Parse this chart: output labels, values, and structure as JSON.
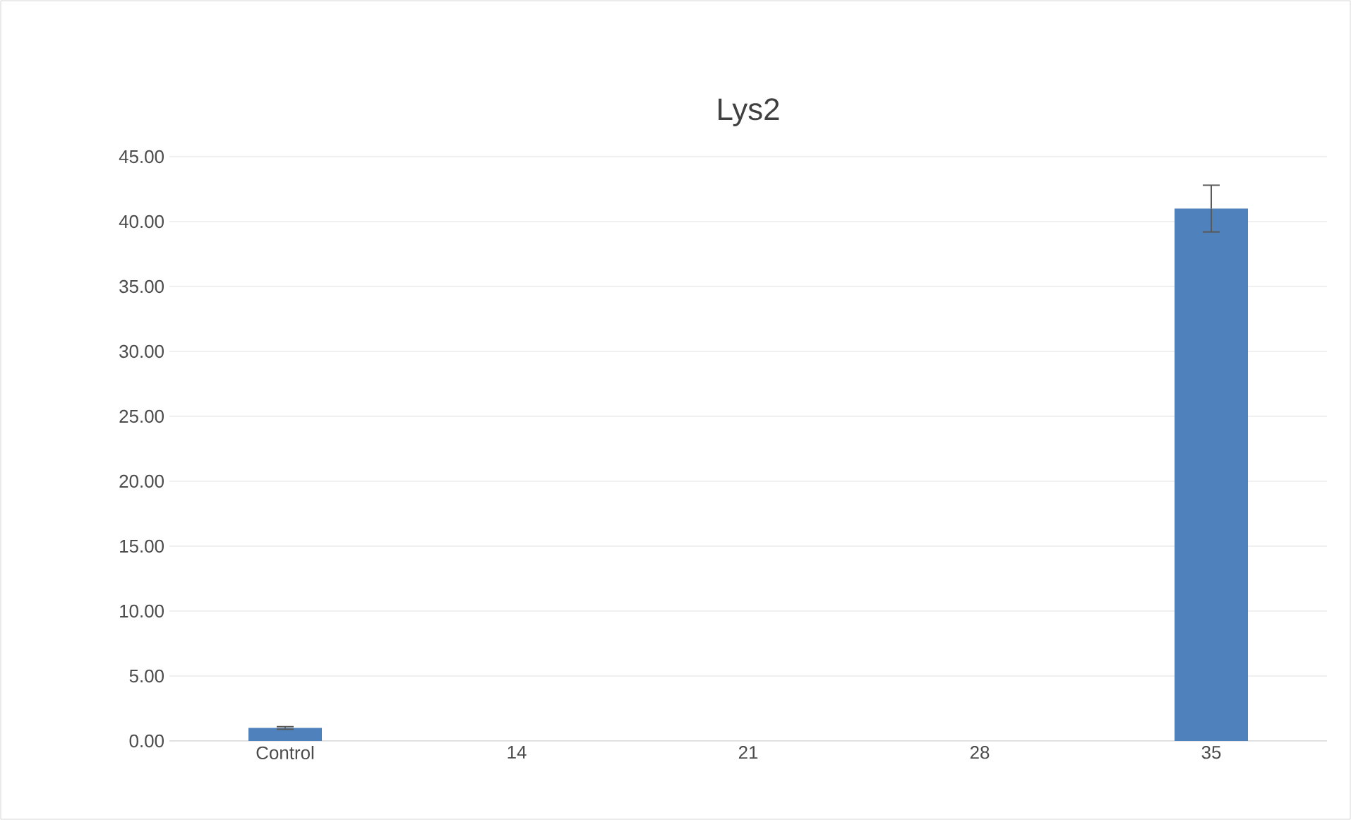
{
  "chart_data": {
    "type": "bar",
    "title": "Lys2",
    "categories": [
      "Control",
      "14",
      "21",
      "28",
      "35"
    ],
    "values": [
      1.0,
      0,
      0,
      0,
      41.0
    ],
    "errors": [
      0.1,
      null,
      null,
      null,
      1.8
    ],
    "color": "#4f81bd",
    "ylim": [
      0,
      45
    ],
    "yticks": [
      {
        "value": 0,
        "label": "0.00"
      },
      {
        "value": 5,
        "label": "5.00"
      },
      {
        "value": 10,
        "label": "10.00"
      },
      {
        "value": 15,
        "label": "15.00"
      },
      {
        "value": 20,
        "label": "20.00"
      },
      {
        "value": 25,
        "label": "25.00"
      },
      {
        "value": 30,
        "label": "30.00"
      },
      {
        "value": 35,
        "label": "35.00"
      },
      {
        "value": 40,
        "label": "40.00"
      },
      {
        "value": 45,
        "label": "45.00"
      }
    ],
    "grid": "y"
  }
}
